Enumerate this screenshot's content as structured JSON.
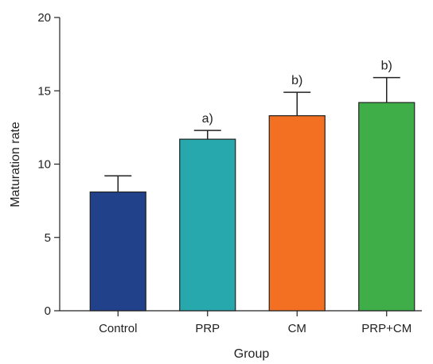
{
  "chart_data": {
    "type": "bar",
    "title": "",
    "xlabel": "Group",
    "ylabel": "Maturation rate",
    "ylim": [
      0,
      20
    ],
    "yticks": [
      0,
      5,
      10,
      15,
      20
    ],
    "grid": false,
    "categories": [
      "Control",
      "PRP",
      "CM",
      "PRP+CM"
    ],
    "values": [
      8.1,
      11.7,
      13.3,
      14.2
    ],
    "error_upper": [
      1.1,
      0.6,
      1.6,
      1.7
    ],
    "annotations": [
      "",
      "a)",
      "b)",
      "b)"
    ],
    "colors": [
      "#22418b",
      "#26a8ad",
      "#f36f21",
      "#3fae49"
    ]
  }
}
